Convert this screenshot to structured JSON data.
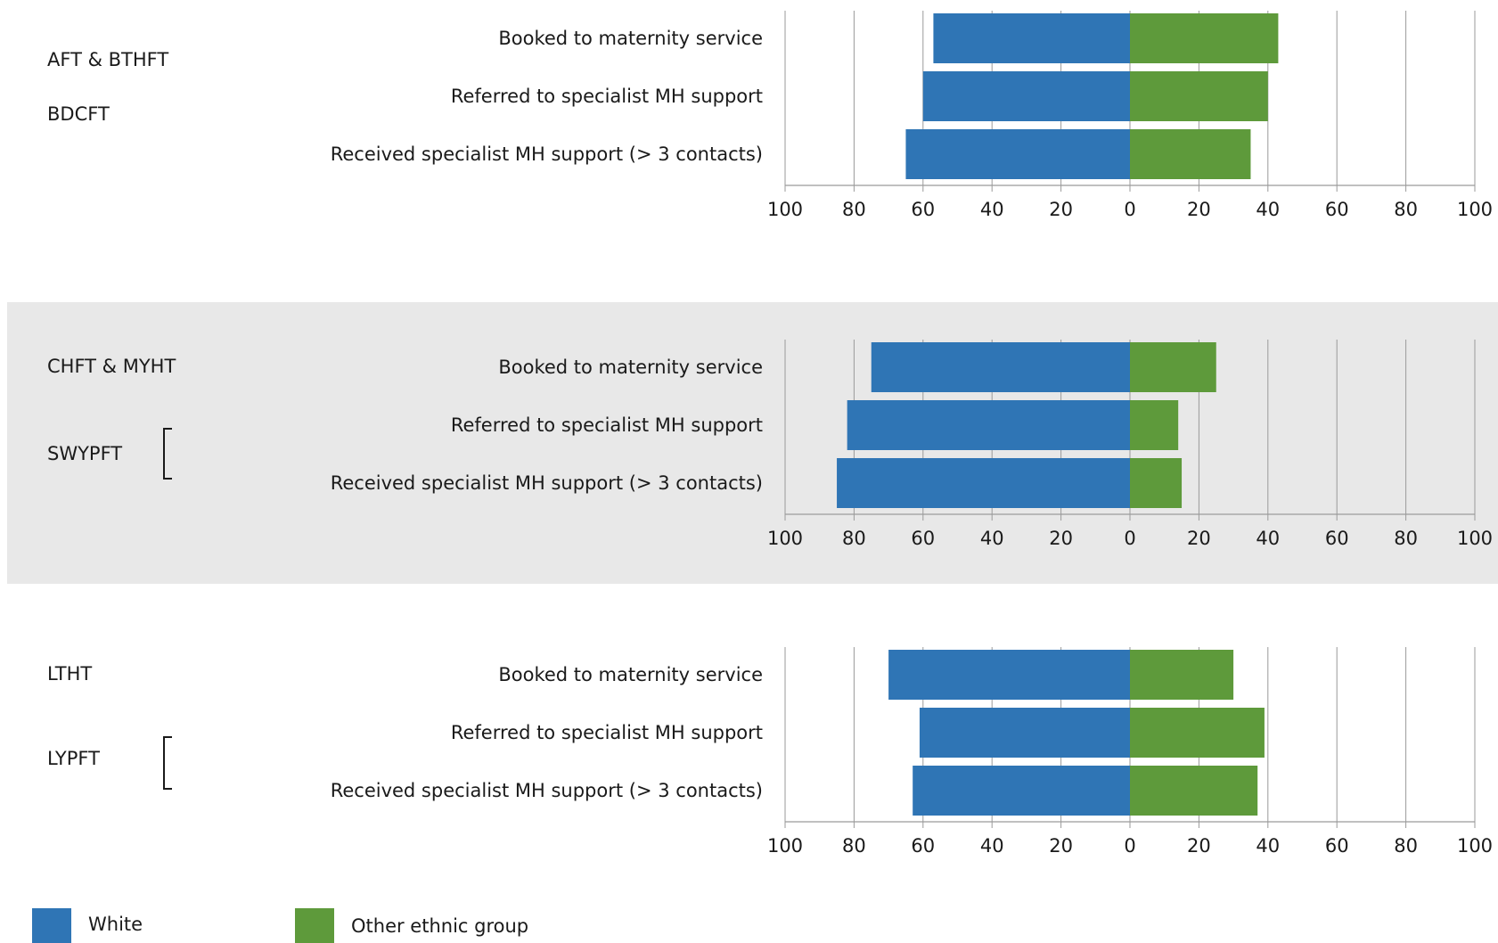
{
  "colors": {
    "white": "#2f75b5",
    "other": "#5e9a3b",
    "shade": "#e8e8e8",
    "grid": "#9a9a9a"
  },
  "legend": [
    {
      "label": "White",
      "color": "#2f75b5"
    },
    {
      "label": "Other ethnic group",
      "color": "#5e9a3b"
    }
  ],
  "groups": [
    {
      "orgs": [
        "AFT & BTHFT",
        "BDCFT"
      ],
      "bracket": false,
      "shaded": false
    },
    {
      "orgs": [
        "CHFT & MYHT",
        "SWYPFT"
      ],
      "bracket": true,
      "shaded": true
    },
    {
      "orgs": [
        "LTHT",
        "LYPFT"
      ],
      "bracket": true,
      "shaded": false
    }
  ],
  "chart_data": [
    {
      "type": "bar",
      "orientation": "horizontal-diverging",
      "categories": [
        "Booked to maternity service",
        "Referred to specialist MH support",
        "Received specialist MH support (> 3 contacts)"
      ],
      "series": [
        {
          "name": "White",
          "values": [
            57,
            60,
            65
          ]
        },
        {
          "name": "Other ethnic group",
          "values": [
            43,
            40,
            35
          ]
        }
      ],
      "xticks": [
        "100",
        "80",
        "60",
        "40",
        "20",
        "0",
        "20",
        "40",
        "60",
        "80",
        "100"
      ],
      "xlim": [
        -100,
        100
      ],
      "grid": true
    },
    {
      "type": "bar",
      "orientation": "horizontal-diverging",
      "categories": [
        "Booked to maternity service",
        "Referred to specialist MH support",
        "Received specialist MH support (> 3 contacts)"
      ],
      "series": [
        {
          "name": "White",
          "values": [
            75,
            82,
            85
          ]
        },
        {
          "name": "Other ethnic group",
          "values": [
            25,
            14,
            15
          ]
        }
      ],
      "xticks": [
        "100",
        "80",
        "60",
        "40",
        "20",
        "0",
        "20",
        "40",
        "60",
        "80",
        "100"
      ],
      "xlim": [
        -100,
        100
      ],
      "grid": true
    },
    {
      "type": "bar",
      "orientation": "horizontal-diverging",
      "categories": [
        "Booked to maternity service",
        "Referred to specialist MH support",
        "Received specialist MH support (> 3 contacts)"
      ],
      "series": [
        {
          "name": "White",
          "values": [
            70,
            61,
            63
          ]
        },
        {
          "name": "Other ethnic group",
          "values": [
            30,
            39,
            37
          ]
        }
      ],
      "xticks": [
        "100",
        "80",
        "60",
        "40",
        "20",
        "0",
        "20",
        "40",
        "60",
        "80",
        "100"
      ],
      "xlim": [
        -100,
        100
      ],
      "grid": true
    }
  ]
}
